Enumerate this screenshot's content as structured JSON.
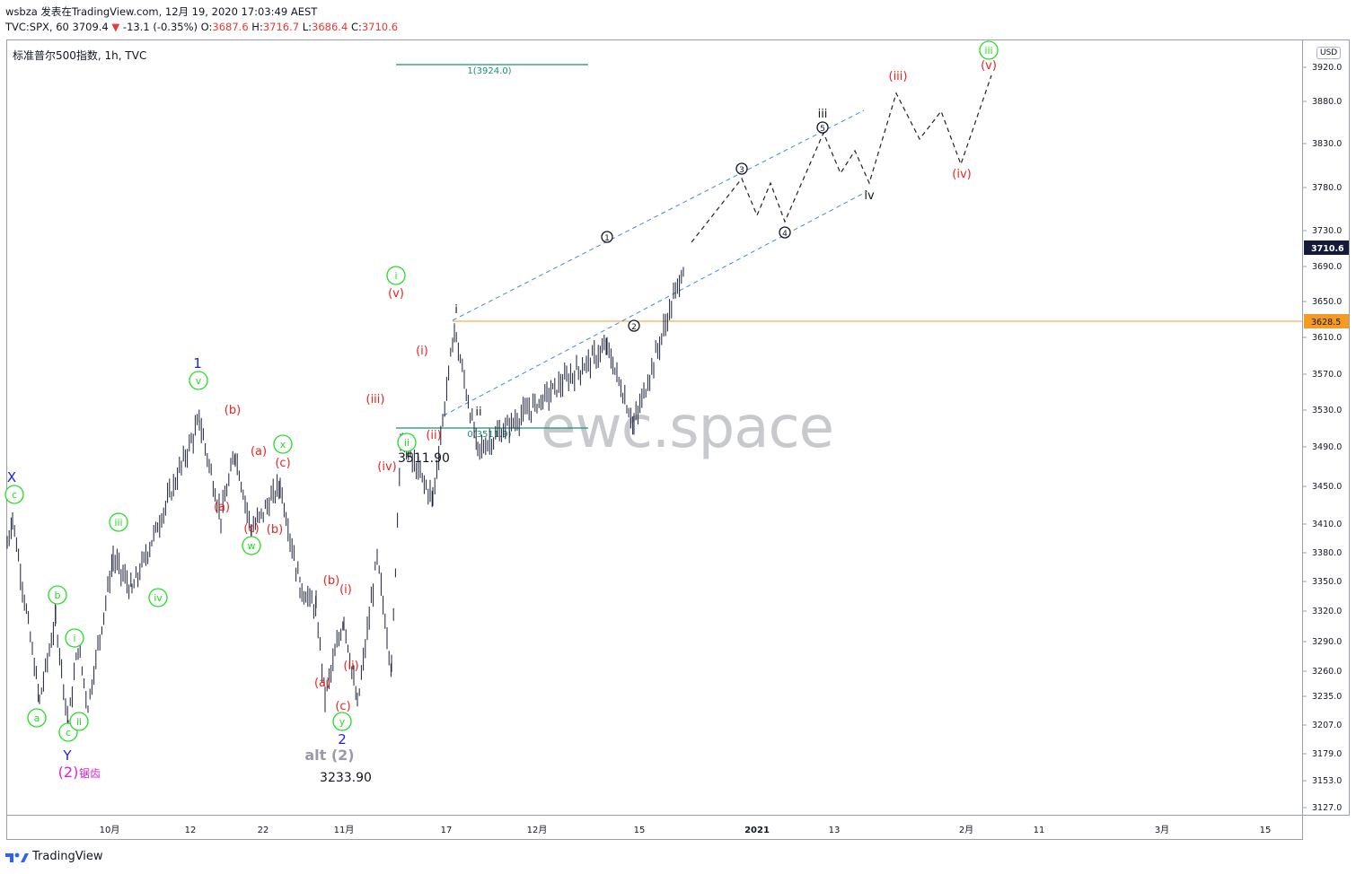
{
  "header": {
    "publisher_line": "wsbza 发表在TradingView.com, 12月 19, 2020 17:03:49 AEST",
    "symbol_prefix": "TVC:SPX, 60 3709.4",
    "change": "-13.1 (-0.35%)",
    "o_label": "O:",
    "o_value": "3687.6",
    "h_label": "H:",
    "h_value": "3716.7",
    "l_label": "L:",
    "l_value": "3686.4",
    "c_label": "C:",
    "c_value": "3710.6"
  },
  "legend": {
    "symbol": "标准普尔500指数, 1h, TVC"
  },
  "price_axis": {
    "currency": "USD",
    "ticks": [
      "3920.0",
      "3880.0",
      "3830.0",
      "3780.0",
      "3730.0",
      "3690.0",
      "3650.0",
      "3610.0",
      "3570.0",
      "3530.0",
      "3490.0",
      "3450.0",
      "3410.0",
      "3380.0",
      "3350.0",
      "3320.0",
      "3290.0",
      "3260.0",
      "3235.0",
      "3207.0",
      "3179.0",
      "3153.0",
      "3127.0"
    ],
    "current_price": "3710.6",
    "marked_level": "3628.5"
  },
  "time_axis": {
    "labels": [
      "10月",
      "12",
      "22",
      "11月",
      "17",
      "12月",
      "15",
      "2021",
      "13",
      "2月",
      "11",
      "3月",
      "15"
    ],
    "bold_labels": [
      "2021"
    ]
  },
  "watermark": "ewc.space",
  "branding": "TradingView",
  "colors": {
    "green": "#22dd22",
    "red": "#ee2222",
    "blue": "#1e22e0",
    "magenta": "#dd22dd",
    "teal": "#1b8f75",
    "orange": "#f59a23",
    "channel": "#4a86d6",
    "candle": "#1c1f3a",
    "current_price_bg": "#131a3a",
    "marked_level_bg": "#f59a23"
  },
  "chart_data": {
    "type": "candlestick",
    "title": "标准普尔500指数, 1h, TVC",
    "ylim": [
      3115,
      3960
    ],
    "x_ticks": [
      "10月",
      "12",
      "22",
      "11月",
      "17",
      "12月",
      "15",
      "2021",
      "13",
      "2月",
      "11",
      "3月",
      "15"
    ],
    "swing_path": [
      [
        3410,
        "start"
      ],
      [
        3440,
        "X"
      ],
      [
        3240,
        "a"
      ],
      [
        3330,
        "b"
      ],
      [
        3215,
        "c Y"
      ],
      [
        3300,
        "i"
      ],
      [
        3235,
        "ii"
      ],
      [
        3395,
        "iii"
      ],
      [
        3360,
        "iv"
      ],
      [
        3545,
        "v / 1"
      ],
      [
        3440,
        "(a)"
      ],
      [
        3510,
        "(b)"
      ],
      [
        3425,
        "(c) w"
      ],
      [
        3475,
        "x"
      ],
      [
        3365,
        "(a)"
      ],
      [
        3340,
        "(b)"
      ],
      [
        3245,
        "(i)"
      ],
      [
        3330,
        "(ii)"
      ],
      [
        3234,
        "(c) y / 2"
      ],
      [
        3395,
        "(i)"
      ],
      [
        3275,
        "(ii)"
      ],
      [
        3525,
        "(iii)"
      ],
      [
        3460,
        "(iv)"
      ],
      [
        3645,
        "(i)"
      ],
      [
        3512,
        "(ii)"
      ],
      [
        3625,
        "i"
      ],
      [
        3540,
        "ii"
      ],
      [
        3715,
        "1"
      ],
      [
        3628,
        "2"
      ],
      [
        3724,
        "current"
      ]
    ],
    "projection": [
      [
        3790,
        "3"
      ],
      [
        3745,
        ""
      ],
      [
        3785,
        ""
      ],
      [
        3738,
        "4"
      ],
      [
        3840,
        "5 iii"
      ],
      [
        3795,
        ""
      ],
      [
        3820,
        ""
      ],
      [
        3782,
        "iv"
      ],
      [
        3888,
        "(iii)"
      ],
      [
        3835,
        ""
      ],
      [
        3870,
        ""
      ],
      [
        3805,
        "(iv)"
      ],
      [
        3910,
        "(v) iii"
      ]
    ],
    "horizontal_levels": [
      {
        "label": "1(3924.0)",
        "value": 3924.0
      },
      {
        "label": "0(3511.9)",
        "value": 3511.9
      },
      {
        "label": "3628.5",
        "value": 3628.5
      }
    ],
    "price_labels": [
      "3511.90",
      "3233.90"
    ],
    "wave_labels": {
      "green": [
        "c",
        "b",
        "a",
        "i",
        "c",
        "ii",
        "iii",
        "iv",
        "v",
        "x",
        "w",
        "y",
        "i",
        "ii",
        "iii"
      ],
      "red": [
        "(b)",
        "(a)",
        "(a)",
        "(c)",
        "(c)",
        "(b)",
        "(b)",
        "(i)",
        "(ii)",
        "(a)",
        "(c)",
        "(v)",
        "(i)",
        "(iii)",
        "(ii)",
        "(iv)",
        "(iii)",
        "(iv)",
        "(v)"
      ],
      "blue": [
        "X",
        "Y",
        "1",
        "2"
      ],
      "black": [
        "i",
        "ii",
        "iii",
        "iv"
      ],
      "circled": [
        "1",
        "2",
        "3",
        "4",
        "5"
      ],
      "magenta": [
        "(2)",
        "锯齿"
      ],
      "gray": [
        "alt (2)"
      ]
    }
  }
}
